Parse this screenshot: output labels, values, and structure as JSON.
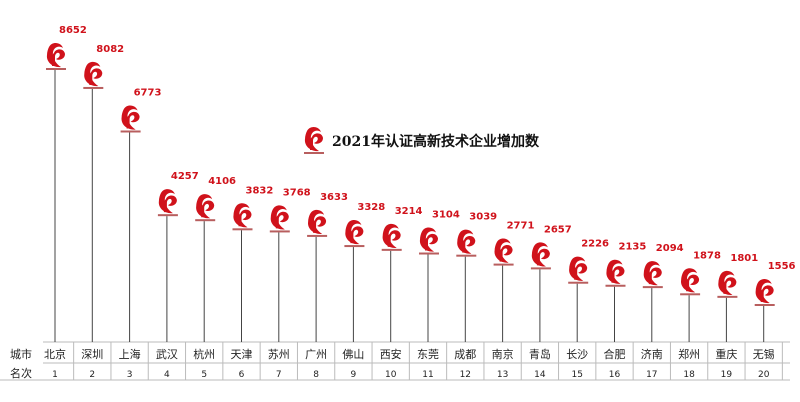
{
  "chart_data": {
    "type": "bar",
    "title": "2021年认证高新技术企业增加数",
    "row_labels": {
      "city": "城市",
      "rank": "名次"
    },
    "categories": [
      "北京",
      "深圳",
      "上海",
      "武汉",
      "杭州",
      "天津",
      "苏州",
      "广州",
      "佛山",
      "西安",
      "东莞",
      "成都",
      "南京",
      "青岛",
      "长沙",
      "合肥",
      "济南",
      "郑州",
      "重庆",
      "无锡"
    ],
    "ranks": [
      "1",
      "2",
      "3",
      "4",
      "5",
      "6",
      "7",
      "8",
      "9",
      "10",
      "11",
      "12",
      "13",
      "14",
      "15",
      "16",
      "17",
      "18",
      "19",
      "20"
    ],
    "values": [
      8652,
      8082,
      6773,
      4257,
      4106,
      3832,
      3768,
      3633,
      3328,
      3214,
      3104,
      3039,
      2771,
      2657,
      2226,
      2135,
      2094,
      1878,
      1801,
      1556
    ],
    "ylim": [
      0,
      9000
    ],
    "colors": {
      "marker": "#d0121b",
      "value_label": "#d0121b",
      "stem": "#444444",
      "grid": "#bbbbbb"
    },
    "icon": "high-tech-enterprise-logo-icon"
  }
}
